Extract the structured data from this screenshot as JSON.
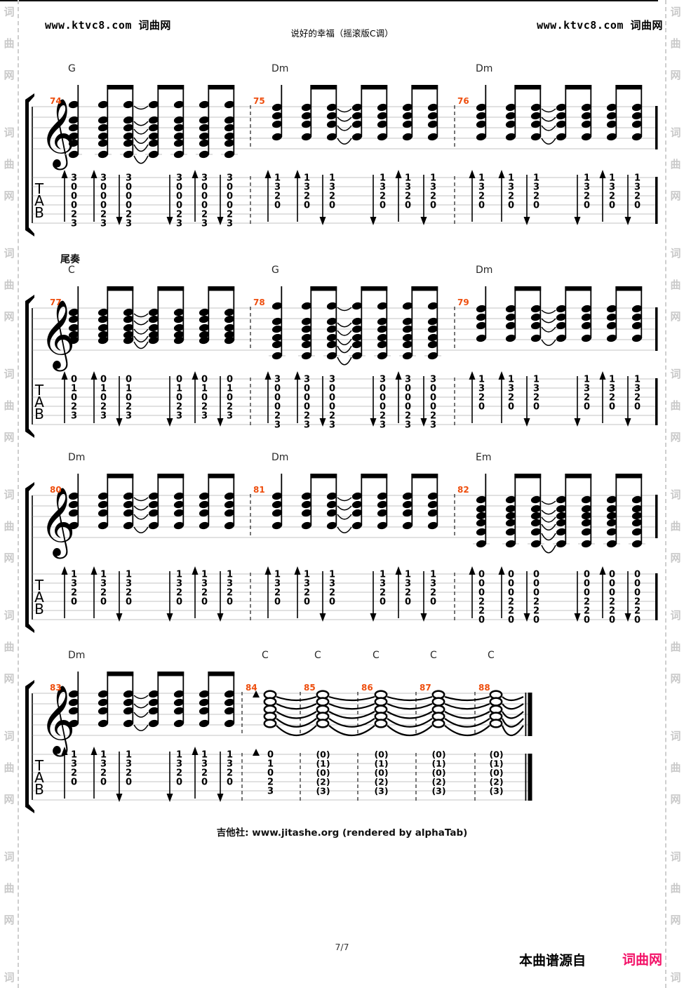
{
  "page": {
    "header_left": "www.ktvc8.com 词曲网",
    "header_right": "www.ktvc8.com 词曲网",
    "title": "说好的幸福（摇滚版C调）",
    "footer_credit": "吉他社: www.jitashe.org (rendered by alphaTab)",
    "page_number": "7/7",
    "source_label": "本曲谱源自",
    "source_brand": "词曲网",
    "watermark_text": "词曲网",
    "colors": {
      "measure_number": "#ee4e0e",
      "brand_pink": "#f31268",
      "watermark_gray": "#c9c9c9",
      "staff_line": "#c3c3c3",
      "ink": "#000000",
      "barline_dash": "#2c2c2c"
    }
  },
  "score": {
    "clef": "treble",
    "tab_letters": [
      "T",
      "A",
      "B"
    ],
    "strum_arrows": [
      "up",
      "up",
      "down",
      "down",
      "up",
      "down"
    ],
    "systems": [
      {
        "section_label": "",
        "measures": [
          {
            "number": "74",
            "chord": "G",
            "kind": "strum",
            "frets": [
              "3",
              "0",
              "0",
              "0",
              "2",
              "3"
            ]
          },
          {
            "number": "75",
            "chord": "Dm",
            "kind": "strum",
            "frets": [
              "1",
              "3",
              "2",
              "0"
            ]
          },
          {
            "number": "76",
            "chord": "Dm",
            "kind": "strum",
            "frets": [
              "1",
              "3",
              "2",
              "0"
            ]
          }
        ]
      },
      {
        "section_label": "尾奏",
        "measures": [
          {
            "number": "77",
            "chord": "C",
            "kind": "strum",
            "frets": [
              "0",
              "1",
              "0",
              "2",
              "3"
            ]
          },
          {
            "number": "78",
            "chord": "G",
            "kind": "strum",
            "frets": [
              "3",
              "0",
              "0",
              "0",
              "2",
              "3"
            ]
          },
          {
            "number": "79",
            "chord": "Dm",
            "kind": "strum",
            "frets": [
              "1",
              "3",
              "2",
              "0"
            ]
          }
        ]
      },
      {
        "section_label": "",
        "measures": [
          {
            "number": "80",
            "chord": "Dm",
            "kind": "strum",
            "frets": [
              "1",
              "3",
              "2",
              "0"
            ]
          },
          {
            "number": "81",
            "chord": "Dm",
            "kind": "strum",
            "frets": [
              "1",
              "3",
              "2",
              "0"
            ]
          },
          {
            "number": "82",
            "chord": "Em",
            "kind": "strum",
            "frets": [
              "0",
              "0",
              "0",
              "2",
              "2",
              "0"
            ]
          }
        ]
      },
      {
        "section_label": "",
        "measures": [
          {
            "number": "83",
            "chord": "Dm",
            "kind": "strum",
            "frets": [
              "1",
              "3",
              "2",
              "0"
            ]
          },
          {
            "number": "84",
            "chord": "C",
            "kind": "whole",
            "accent": true,
            "frets": [
              "0",
              "1",
              "0",
              "2",
              "3"
            ]
          },
          {
            "number": "85",
            "chord": "C",
            "kind": "whole",
            "tied": true,
            "frets": [
              "(0)",
              "(1)",
              "(0)",
              "(2)",
              "(3)"
            ]
          },
          {
            "number": "86",
            "chord": "C",
            "kind": "whole",
            "tied": true,
            "frets": [
              "(0)",
              "(1)",
              "(0)",
              "(2)",
              "(3)"
            ]
          },
          {
            "number": "87",
            "chord": "C",
            "kind": "whole",
            "tied": true,
            "frets": [
              "(0)",
              "(1)",
              "(0)",
              "(2)",
              "(3)"
            ]
          },
          {
            "number": "88",
            "chord": "C",
            "kind": "whole",
            "tied": true,
            "frets": [
              "(0)",
              "(1)",
              "(0)",
              "(2)",
              "(3)"
            ]
          }
        ]
      }
    ]
  }
}
